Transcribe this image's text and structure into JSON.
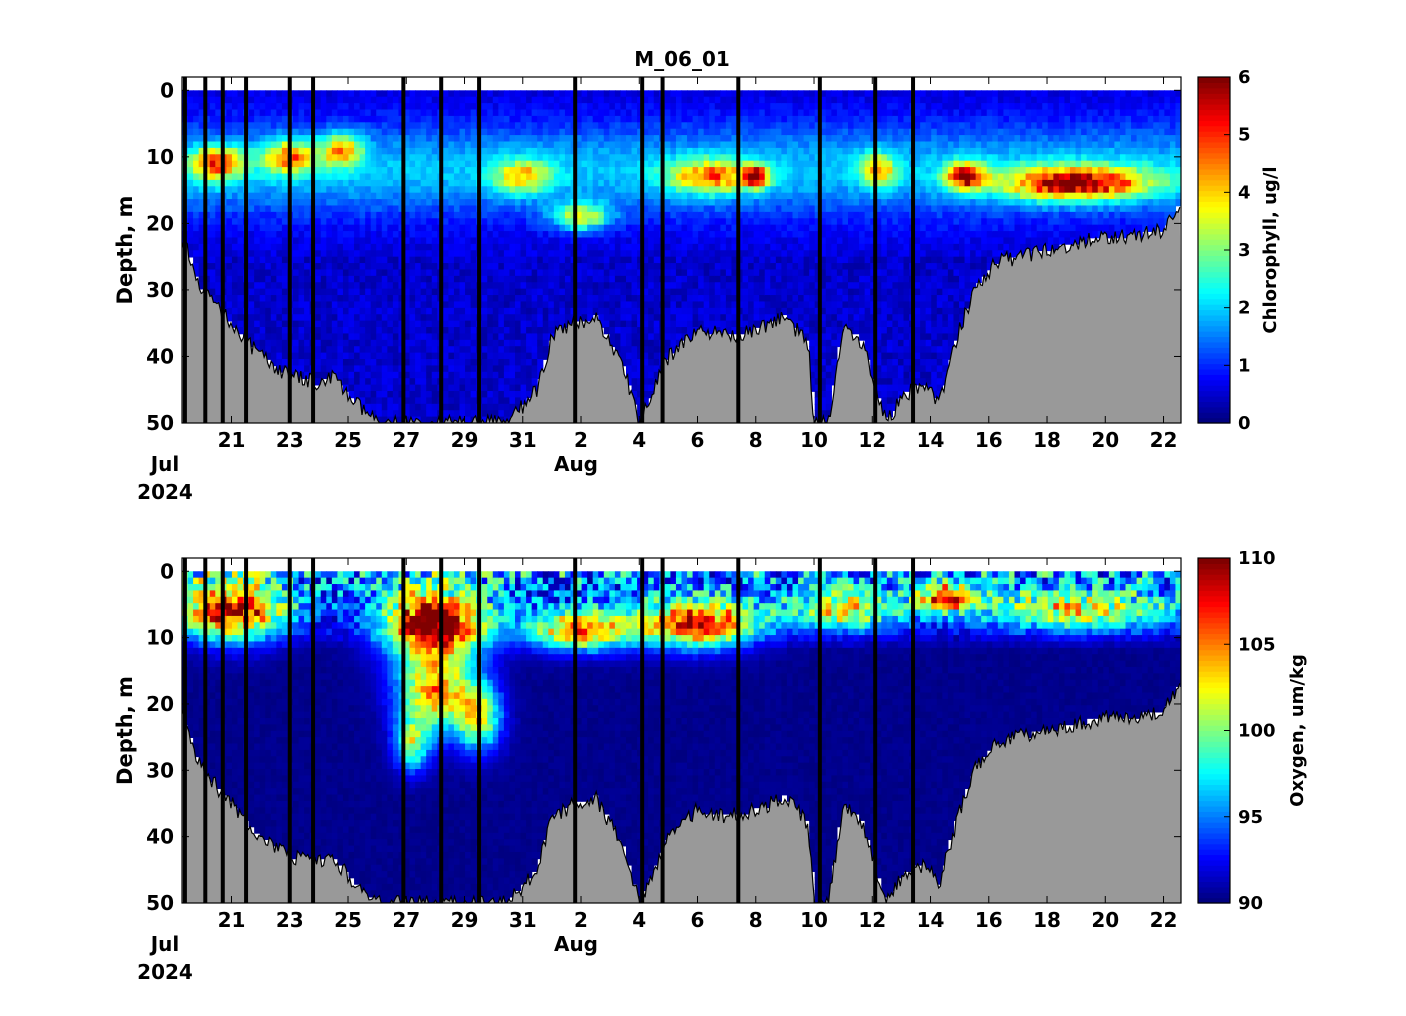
{
  "figure": {
    "title": "M_06_01"
  },
  "chart_data": [
    {
      "type": "heatmap",
      "title": "M_06_01",
      "xlabel": "",
      "ylabel": "Depth, m",
      "x_range_days": [
        19.3,
        53.6
      ],
      "y_range": [
        -2,
        50
      ],
      "y_reversed": true,
      "y_ticks": [
        0,
        10,
        20,
        30,
        40,
        50
      ],
      "x_ticks": [
        {
          "day": 21,
          "label": "21"
        },
        {
          "day": 23,
          "label": "23"
        },
        {
          "day": 25,
          "label": "25"
        },
        {
          "day": 27,
          "label": "27"
        },
        {
          "day": 29,
          "label": "29"
        },
        {
          "day": 31,
          "label": "31"
        },
        {
          "day": 33,
          "label": "2"
        },
        {
          "day": 35,
          "label": "4"
        },
        {
          "day": 37,
          "label": "6"
        },
        {
          "day": 39,
          "label": "8"
        },
        {
          "day": 41,
          "label": "10"
        },
        {
          "day": 43,
          "label": "12"
        },
        {
          "day": 45,
          "label": "14"
        },
        {
          "day": 47,
          "label": "16"
        },
        {
          "day": 49,
          "label": "18"
        },
        {
          "day": 51,
          "label": "20"
        },
        {
          "day": 53,
          "label": "22"
        }
      ],
      "month_labels": [
        {
          "day": 19.3,
          "month": "Jul",
          "year": "2024"
        },
        {
          "day": 32.0,
          "month": "Aug",
          "year": ""
        }
      ],
      "colorbar": {
        "label": "Chlorophyll, ug/l",
        "min": 0,
        "max": 6,
        "ticks": [
          0,
          1,
          2,
          3,
          4,
          5,
          6
        ],
        "colormap": "jet"
      },
      "profile_marker_days": [
        19.4,
        20.1,
        20.7,
        21.5,
        23.0,
        23.8,
        26.9,
        28.2,
        29.5,
        32.8,
        35.1,
        35.8,
        38.4,
        41.2,
        43.1,
        44.4
      ],
      "seafloor_depth_m": [
        {
          "day": 19.3,
          "depth": 22
        },
        {
          "day": 20.0,
          "depth": 30
        },
        {
          "day": 21.0,
          "depth": 35
        },
        {
          "day": 22.0,
          "depth": 40
        },
        {
          "day": 23.0,
          "depth": 43
        },
        {
          "day": 24.0,
          "depth": 44
        },
        {
          "day": 24.5,
          "depth": 43
        },
        {
          "day": 25.0,
          "depth": 46
        },
        {
          "day": 26.0,
          "depth": 50
        },
        {
          "day": 30.5,
          "depth": 50
        },
        {
          "day": 31.5,
          "depth": 45
        },
        {
          "day": 32.0,
          "depth": 37
        },
        {
          "day": 32.8,
          "depth": 35
        },
        {
          "day": 33.5,
          "depth": 34
        },
        {
          "day": 34.5,
          "depth": 42
        },
        {
          "day": 35.0,
          "depth": 50
        },
        {
          "day": 35.5,
          "depth": 45
        },
        {
          "day": 36.0,
          "depth": 40
        },
        {
          "day": 37.0,
          "depth": 36
        },
        {
          "day": 38.0,
          "depth": 37
        },
        {
          "day": 39.0,
          "depth": 36
        },
        {
          "day": 40.0,
          "depth": 34
        },
        {
          "day": 40.8,
          "depth": 38
        },
        {
          "day": 41.0,
          "depth": 50
        },
        {
          "day": 41.5,
          "depth": 50
        },
        {
          "day": 42.0,
          "depth": 35
        },
        {
          "day": 42.7,
          "depth": 38
        },
        {
          "day": 43.0,
          "depth": 43
        },
        {
          "day": 43.5,
          "depth": 50
        },
        {
          "day": 44.0,
          "depth": 46
        },
        {
          "day": 44.8,
          "depth": 44
        },
        {
          "day": 45.3,
          "depth": 47
        },
        {
          "day": 46.0,
          "depth": 36
        },
        {
          "day": 46.5,
          "depth": 30
        },
        {
          "day": 47.2,
          "depth": 26
        },
        {
          "day": 48.0,
          "depth": 25
        },
        {
          "day": 49.0,
          "depth": 24
        },
        {
          "day": 50.0,
          "depth": 23
        },
        {
          "day": 51.0,
          "depth": 22
        },
        {
          "day": 52.0,
          "depth": 22
        },
        {
          "day": 53.0,
          "depth": 21
        },
        {
          "day": 53.6,
          "depth": 17
        }
      ],
      "features": [
        {
          "day": 20.5,
          "depth": 11,
          "value": 3.9,
          "w_day": 1.8,
          "h_m": 5
        },
        {
          "day": 23.0,
          "depth": 10,
          "value": 3.6,
          "w_day": 1.8,
          "h_m": 5
        },
        {
          "day": 24.8,
          "depth": 9,
          "value": 3.4,
          "w_day": 1.4,
          "h_m": 5
        },
        {
          "day": 31.0,
          "depth": 13,
          "value": 3.0,
          "w_day": 2.0,
          "h_m": 5
        },
        {
          "day": 33.0,
          "depth": 19,
          "value": 3.2,
          "w_day": 2.0,
          "h_m": 4
        },
        {
          "day": 37.5,
          "depth": 13,
          "value": 3.5,
          "w_day": 3.0,
          "h_m": 5
        },
        {
          "day": 39.0,
          "depth": 13,
          "value": 4.8,
          "w_day": 0.8,
          "h_m": 3
        },
        {
          "day": 43.2,
          "depth": 12,
          "value": 3.2,
          "w_day": 1.2,
          "h_m": 5
        },
        {
          "day": 46.2,
          "depth": 13,
          "value": 4.5,
          "w_day": 1.4,
          "h_m": 4
        },
        {
          "day": 50.0,
          "depth": 14,
          "value": 5.0,
          "w_day": 5.0,
          "h_m": 5
        }
      ],
      "surface_value": 0.3
    },
    {
      "type": "heatmap",
      "title": "",
      "xlabel": "",
      "ylabel": "Depth, m",
      "x_range_days": [
        19.3,
        53.6
      ],
      "y_range": [
        -2,
        50
      ],
      "y_reversed": true,
      "y_ticks": [
        0,
        10,
        20,
        30,
        40,
        50
      ],
      "x_ticks": [
        {
          "day": 21,
          "label": "21"
        },
        {
          "day": 23,
          "label": "23"
        },
        {
          "day": 25,
          "label": "25"
        },
        {
          "day": 27,
          "label": "27"
        },
        {
          "day": 29,
          "label": "29"
        },
        {
          "day": 31,
          "label": "31"
        },
        {
          "day": 33,
          "label": "2"
        },
        {
          "day": 35,
          "label": "4"
        },
        {
          "day": 37,
          "label": "6"
        },
        {
          "day": 39,
          "label": "8"
        },
        {
          "day": 41,
          "label": "10"
        },
        {
          "day": 43,
          "label": "12"
        },
        {
          "day": 45,
          "label": "14"
        },
        {
          "day": 47,
          "label": "16"
        },
        {
          "day": 49,
          "label": "18"
        },
        {
          "day": 51,
          "label": "20"
        },
        {
          "day": 53,
          "label": "22"
        }
      ],
      "month_labels": [
        {
          "day": 19.3,
          "month": "Jul",
          "year": "2024"
        },
        {
          "day": 32.0,
          "month": "Aug",
          "year": ""
        }
      ],
      "colorbar": {
        "label": "Oxygen, um/kg",
        "min": 90,
        "max": 110,
        "ticks": [
          90,
          95,
          100,
          105,
          110
        ],
        "colormap": "jet"
      },
      "profile_marker_days": [
        19.4,
        20.1,
        20.7,
        21.5,
        23.0,
        23.8,
        26.9,
        28.2,
        29.5,
        32.8,
        35.1,
        35.8,
        38.4,
        41.2,
        43.1,
        44.4
      ],
      "seafloor_depth_m": [
        {
          "day": 19.3,
          "depth": 22
        },
        {
          "day": 20.0,
          "depth": 30
        },
        {
          "day": 21.0,
          "depth": 35
        },
        {
          "day": 22.0,
          "depth": 40
        },
        {
          "day": 23.0,
          "depth": 43
        },
        {
          "day": 24.0,
          "depth": 44
        },
        {
          "day": 24.5,
          "depth": 43
        },
        {
          "day": 25.0,
          "depth": 46
        },
        {
          "day": 26.0,
          "depth": 50
        },
        {
          "day": 30.5,
          "depth": 50
        },
        {
          "day": 31.5,
          "depth": 45
        },
        {
          "day": 32.0,
          "depth": 37
        },
        {
          "day": 32.8,
          "depth": 35
        },
        {
          "day": 33.5,
          "depth": 34
        },
        {
          "day": 34.5,
          "depth": 42
        },
        {
          "day": 35.0,
          "depth": 50
        },
        {
          "day": 35.5,
          "depth": 45
        },
        {
          "day": 36.0,
          "depth": 40
        },
        {
          "day": 37.0,
          "depth": 36
        },
        {
          "day": 38.0,
          "depth": 37
        },
        {
          "day": 39.0,
          "depth": 36
        },
        {
          "day": 40.0,
          "depth": 34
        },
        {
          "day": 40.8,
          "depth": 38
        },
        {
          "day": 41.0,
          "depth": 50
        },
        {
          "day": 41.5,
          "depth": 50
        },
        {
          "day": 42.0,
          "depth": 35
        },
        {
          "day": 42.7,
          "depth": 38
        },
        {
          "day": 43.0,
          "depth": 43
        },
        {
          "day": 43.5,
          "depth": 50
        },
        {
          "day": 44.0,
          "depth": 46
        },
        {
          "day": 44.8,
          "depth": 44
        },
        {
          "day": 45.3,
          "depth": 47
        },
        {
          "day": 46.0,
          "depth": 36
        },
        {
          "day": 46.5,
          "depth": 30
        },
        {
          "day": 47.2,
          "depth": 26
        },
        {
          "day": 48.0,
          "depth": 25
        },
        {
          "day": 49.0,
          "depth": 24
        },
        {
          "day": 50.0,
          "depth": 23
        },
        {
          "day": 51.0,
          "depth": 22
        },
        {
          "day": 52.0,
          "depth": 22
        },
        {
          "day": 53.0,
          "depth": 21
        },
        {
          "day": 53.6,
          "depth": 17
        }
      ],
      "features": [
        {
          "day": 21.0,
          "depth": 6,
          "value": 107,
          "w_day": 3.5,
          "h_m": 9
        },
        {
          "day": 28.0,
          "depth": 8,
          "value": 110,
          "w_day": 3.5,
          "h_m": 10
        },
        {
          "day": 28.0,
          "depth": 18,
          "value": 105,
          "w_day": 2.5,
          "h_m": 12
        },
        {
          "day": 27.2,
          "depth": 26,
          "value": 100,
          "w_day": 1.2,
          "h_m": 8
        },
        {
          "day": 29.5,
          "depth": 22,
          "value": 102,
          "w_day": 1.5,
          "h_m": 10
        },
        {
          "day": 33.0,
          "depth": 9,
          "value": 105,
          "w_day": 3.5,
          "h_m": 6
        },
        {
          "day": 37.0,
          "depth": 8,
          "value": 107,
          "w_day": 4.0,
          "h_m": 7
        },
        {
          "day": 42.0,
          "depth": 6,
          "value": 100,
          "w_day": 4.0,
          "h_m": 6
        },
        {
          "day": 45.5,
          "depth": 4,
          "value": 104,
          "w_day": 2.0,
          "h_m": 4
        },
        {
          "day": 50.0,
          "depth": 6,
          "value": 100,
          "w_day": 7.0,
          "h_m": 6
        }
      ],
      "surface_value": 92
    }
  ]
}
